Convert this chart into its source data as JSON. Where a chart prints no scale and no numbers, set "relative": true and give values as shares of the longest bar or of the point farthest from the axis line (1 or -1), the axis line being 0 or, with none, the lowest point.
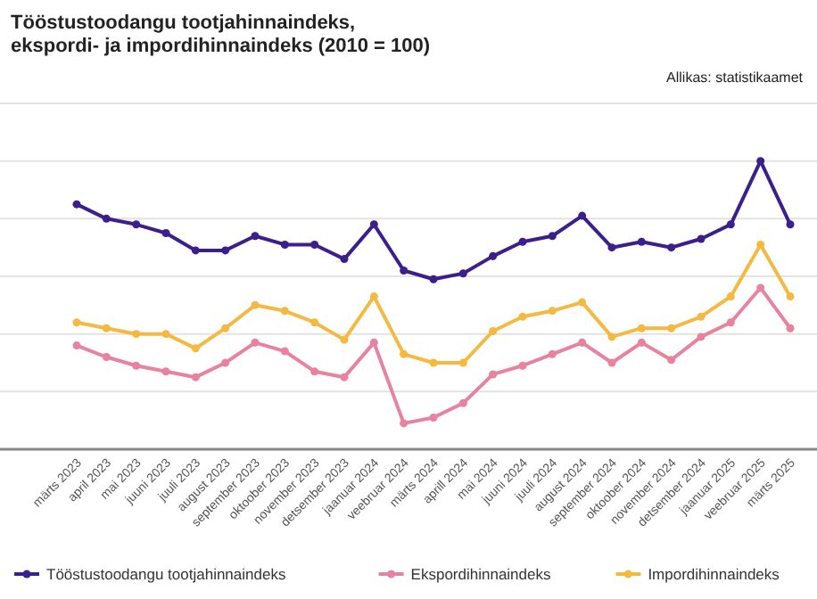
{
  "chart_data": {
    "type": "line",
    "title": "Tööstustoodangu tootjahinnaindeks, ekspordi- ja impordihinnaindeks (2010 = 100)",
    "annotations": [
      "Allikas: statistikaamet"
    ],
    "relative": true,
    "grid": "y",
    "legend": "bottom left",
    "marker": "circle",
    "line_style": "solid",
    "categories": [
      "märts 2023",
      "april 2023",
      "mai 2023",
      "juuni 2023",
      "juuli 2023",
      "august 2023",
      "september 2023",
      "oktoober 2023",
      "november 2023",
      "detsember 2023",
      "jaanuar 2024",
      "veebruar 2024",
      "märts 2024",
      "aprill 2024",
      "mai 2024",
      "juuni 2024",
      "juuli 2024",
      "august 2024",
      "september 2024",
      "oktoober 2024",
      "november 2024",
      "detsember 2024",
      "jaanuar 2025",
      "veebruar 2025",
      "märts 2025"
    ],
    "series": [
      {
        "name": "Tööstustoodangu tootjahinnaindeks",
        "color": "#3b1f8c",
        "values": [
          0.85,
          0.8,
          0.78,
          0.75,
          0.69,
          0.69,
          0.74,
          0.71,
          0.71,
          0.66,
          0.78,
          0.62,
          0.59,
          0.61,
          0.67,
          0.72,
          0.74,
          0.81,
          0.7,
          0.72,
          0.7,
          0.73,
          0.78,
          1,
          0.78
        ]
      },
      {
        "name": "Ekspordihinnaindeks",
        "color": "#e8829f",
        "values": [
          0.36,
          0.32,
          0.29,
          0.27,
          0.25,
          0.3,
          0.37,
          0.34,
          0.27,
          0.25,
          0.37,
          0.09,
          0.11,
          0.16,
          0.26,
          0.29,
          0.33,
          0.37,
          0.3,
          0.37,
          0.31,
          0.39,
          0.44,
          0.56,
          0.42
        ]
      },
      {
        "name": "Impordihinnaindeks",
        "color": "#f5b942",
        "values": [
          0.44,
          0.42,
          0.4,
          0.4,
          0.35,
          0.42,
          0.5,
          0.48,
          0.44,
          0.38,
          0.53,
          0.33,
          0.3,
          0.3,
          0.41,
          0.46,
          0.48,
          0.51,
          0.39,
          0.42,
          0.42,
          0.46,
          0.53,
          0.71,
          0.53
        ]
      }
    ]
  }
}
